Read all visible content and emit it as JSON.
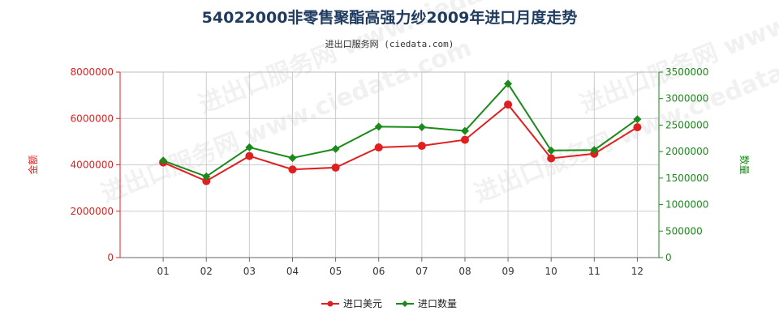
{
  "chart_data": {
    "type": "line",
    "title": "54022000非零售聚酯高强力纱2009年进口月度走势",
    "subtitle": "进出口服务网 (ciedata.com)",
    "categories": [
      "01",
      "02",
      "03",
      "04",
      "05",
      "06",
      "07",
      "08",
      "09",
      "10",
      "11",
      "12"
    ],
    "y_left": {
      "label": "金额",
      "range": [
        0,
        8000000
      ],
      "ticks": [
        "0",
        "2000000",
        "4000000",
        "6000000",
        "8000000"
      ],
      "color": "#e02020"
    },
    "y_right": {
      "label": "数量",
      "range": [
        0,
        3500000
      ],
      "ticks": [
        "0",
        "500000",
        "1000000",
        "1500000",
        "2000000",
        "2500000",
        "3000000",
        "3500000"
      ],
      "color": "#1a8a1a"
    },
    "series": [
      {
        "name": "进口美元",
        "axis": "left",
        "color": "#e02020",
        "marker": "circle",
        "values": [
          4100000,
          3300000,
          4380000,
          3800000,
          3880000,
          4750000,
          4820000,
          5080000,
          6600000,
          4280000,
          4480000,
          5620000
        ]
      },
      {
        "name": "进口数量",
        "axis": "right",
        "color": "#1a8a1a",
        "marker": "diamond",
        "values": [
          1830000,
          1530000,
          2080000,
          1880000,
          2050000,
          2470000,
          2460000,
          2390000,
          3280000,
          2020000,
          2030000,
          2610000
        ]
      }
    ],
    "grid": true,
    "legend_position": "bottom-center"
  },
  "watermark": {
    "text": "进出口服务网 www.ciedata.com"
  }
}
